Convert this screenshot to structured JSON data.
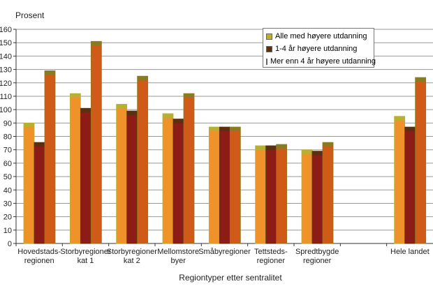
{
  "chart_data": {
    "type": "bar",
    "ylabel": "Prosent",
    "xlabel": "Regiontyper etter sentralitet",
    "ylim": [
      0,
      160
    ],
    "yticks": [
      0,
      10,
      20,
      30,
      40,
      50,
      60,
      70,
      80,
      90,
      100,
      110,
      120,
      130,
      140,
      150,
      160
    ],
    "grid": true,
    "legend_position": "top-right",
    "categories": [
      [
        "Hovedstads-",
        "regionen"
      ],
      [
        "Storbyregioner",
        "kat 1"
      ],
      [
        "Storbyregioner",
        "kat 2"
      ],
      [
        "Mellomstore",
        "byer"
      ],
      [
        "Småbyregioner"
      ],
      [
        "Tettsteds-",
        "regioner"
      ],
      [
        "Spredtbygde",
        "regioner"
      ],
      [
        ""
      ],
      [
        "Hele landet"
      ]
    ],
    "series": [
      {
        "name": "Alle med høyere utdanning",
        "color": "#b8b030",
        "fill": "#f0922a",
        "values": [
          90,
          112,
          104,
          97,
          87,
          73,
          70,
          null,
          95
        ]
      },
      {
        "name": "1-4 år høyere utdanning",
        "color": "#5a3010",
        "fill": "#8e1c16",
        "values": [
          75.5,
          101,
          99,
          93,
          87,
          73,
          69,
          null,
          87
        ]
      },
      {
        "name": "Mer enn 4 år høyere utdanning",
        "color": "#8a7a20",
        "fill": "#d05a18",
        "values": [
          129,
          151,
          125,
          112,
          87,
          74,
          75.5,
          null,
          124
        ]
      }
    ]
  }
}
